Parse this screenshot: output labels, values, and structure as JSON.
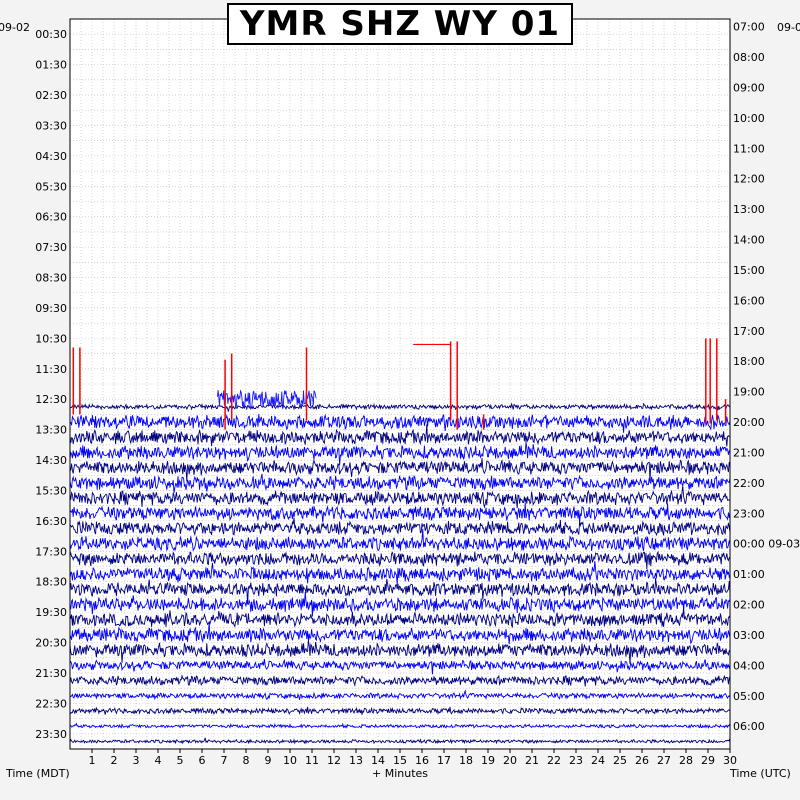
{
  "title": "YMR SHZ WY 01",
  "left_date": "09-02",
  "right_date": "09-0",
  "right_date_midnight": "09-03",
  "footer": {
    "left": "Time (MDT)",
    "center": "+ Minutes",
    "right": "Time (UTC)"
  },
  "chart_data": {
    "type": "line",
    "title": "YMR SHZ WY 01",
    "xlabel": "+ Minutes",
    "ylabel_left": "Time (MDT)",
    "ylabel_right": "Time (UTC)",
    "xlim": [
      0,
      30
    ],
    "x_ticks": [
      "1",
      "2",
      "3",
      "4",
      "5",
      "6",
      "7",
      "8",
      "9",
      "10",
      "11",
      "12",
      "13",
      "14",
      "15",
      "16",
      "17",
      "18",
      "19",
      "20",
      "21",
      "22",
      "23",
      "24",
      "25",
      "26",
      "27",
      "28",
      "29",
      "30"
    ],
    "grid": true,
    "left_times": [
      "00:30",
      "01:30",
      "02:30",
      "03:30",
      "04:30",
      "05:30",
      "06:30",
      "07:30",
      "08:30",
      "09:30",
      "10:30",
      "11:30",
      "12:30",
      "13:30",
      "14:30",
      "15:30",
      "16:30",
      "17:30",
      "18:30",
      "19:30",
      "20:30",
      "21:30",
      "22:30",
      "23:30"
    ],
    "right_times": [
      "07:00",
      "08:00",
      "09:00",
      "10:00",
      "11:00",
      "12:00",
      "13:00",
      "14:00",
      "15:00",
      "16:00",
      "17:00",
      "18:00",
      "19:00",
      "20:00",
      "21:00",
      "22:00",
      "23:00",
      "00:00",
      "01:00",
      "02:00",
      "03:00",
      "04:00",
      "05:00",
      "06:00"
    ],
    "trace_start_mdt": "12:30",
    "trace_colors": [
      "#000080",
      "#0000ff"
    ],
    "event_color": "#ff0000",
    "amplitude_trend": "high amplitude noise from 13:00 to 21:00 MDT, decreasing after 21:30 MDT"
  }
}
